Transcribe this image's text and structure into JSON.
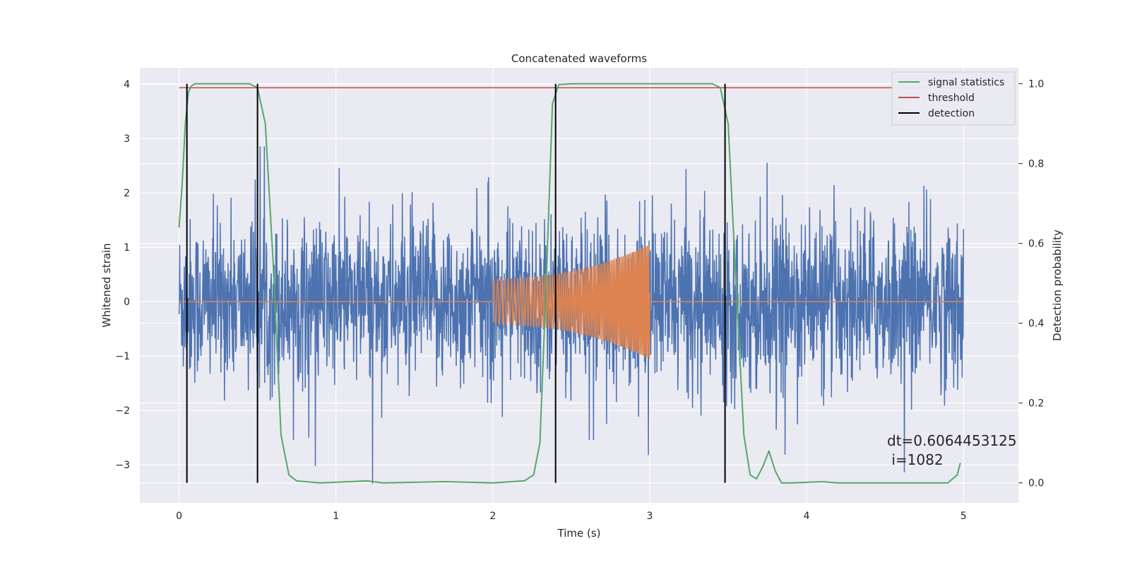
{
  "chart_data": {
    "type": "line",
    "title": "Concatenated waveforms",
    "xlabel": "Time (s)",
    "ylabel": "Whitened strain",
    "y2label": "Detection probability",
    "xlim": [
      -0.25,
      5.35
    ],
    "ylim": [
      -3.7,
      4.3
    ],
    "y2lim": [
      -0.05,
      1.04
    ],
    "xticks": [
      0,
      1,
      2,
      3,
      4,
      5
    ],
    "xtick_labels": [
      "0",
      "1",
      "2",
      "3",
      "4",
      "5"
    ],
    "yticks": [
      -3,
      -2,
      -1,
      0,
      1,
      2,
      3,
      4
    ],
    "ytick_labels": [
      "−3",
      "−2",
      "−1",
      "0",
      "1",
      "2",
      "3",
      "4"
    ],
    "y2ticks": [
      0.0,
      0.2,
      0.4,
      0.6,
      0.8,
      1.0
    ],
    "y2tick_labels": [
      "0.0",
      "0.2",
      "0.4",
      "0.6",
      "0.8",
      "1.0"
    ],
    "grid": true,
    "legend_position": "top-right",
    "legend": [
      {
        "label": "signal statistics",
        "color": "#55a868"
      },
      {
        "label": "threshold",
        "color": "#c44e52"
      },
      {
        "label": "detection",
        "color": "#000000"
      }
    ],
    "noise": {
      "color": "#4c72b0",
      "x_start": 0,
      "x_end": 5,
      "std": 0.75,
      "y_min": -3.35,
      "y_max": 3.95
    },
    "chirp": {
      "color": "#dd8452",
      "x_start": 2.0,
      "x_end": 3.0,
      "amp_start": 0.42,
      "amp_end": 1.05,
      "freq_start": 40,
      "freq_end": 110
    },
    "signal_statistics": {
      "x": [
        0,
        0.02,
        0.04,
        0.06,
        0.08,
        0.1,
        0.45,
        0.5,
        0.55,
        0.6,
        0.65,
        0.7,
        0.75,
        0.9,
        1.2,
        1.3,
        1.7,
        2.0,
        2.2,
        2.26,
        2.3,
        2.34,
        2.38,
        2.42,
        2.5,
        3.4,
        3.45,
        3.5,
        3.55,
        3.6,
        3.64,
        3.68,
        3.72,
        3.76,
        3.8,
        3.84,
        3.9,
        4.1,
        4.2,
        4.9,
        4.96,
        4.98
      ],
      "y": [
        0.64,
        0.75,
        0.9,
        0.98,
        0.995,
        1.0,
        1.0,
        0.99,
        0.9,
        0.55,
        0.12,
        0.02,
        0.005,
        0.0,
        0.005,
        0.0,
        0.003,
        0.0,
        0.005,
        0.02,
        0.1,
        0.5,
        0.95,
        0.998,
        1.0,
        1.0,
        0.99,
        0.9,
        0.5,
        0.12,
        0.02,
        0.01,
        0.04,
        0.08,
        0.03,
        0.0,
        0.0,
        0.003,
        0.0,
        0.0,
        0.02,
        0.05
      ]
    },
    "threshold": {
      "value": 0.99,
      "x_start": 0,
      "x_end": 5
    },
    "detections": [
      0.05,
      0.5,
      2.4,
      3.48
    ],
    "annotation": "dt=0.6064453125\n i=1082"
  }
}
